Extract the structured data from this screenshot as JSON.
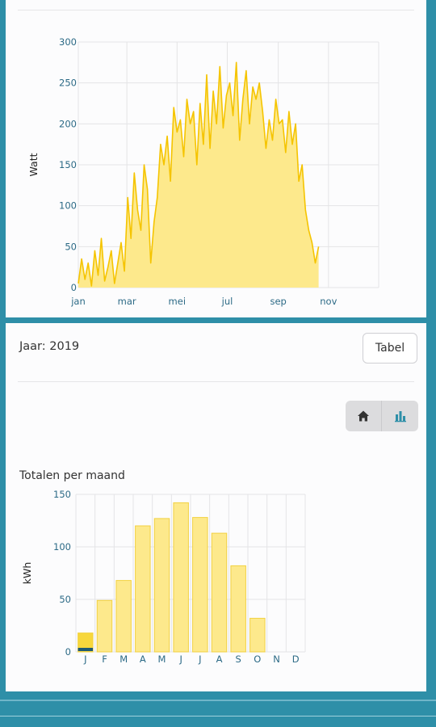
{
  "colors": {
    "accent": "#2e8fa8",
    "line": "#f5c400",
    "area": "#fde98c",
    "bar": "#fde98c",
    "bar_border": "#f2d141",
    "selected_marker": "#1f5a72"
  },
  "panel": {
    "year_label": "Jaar: 2019",
    "table_button": "Tabel",
    "icons": [
      "home-icon",
      "bar-chart-icon"
    ]
  },
  "chart_data": [
    {
      "type": "area",
      "title": "",
      "xlabel": "",
      "ylabel": "Watt",
      "xticks": [
        "jan",
        "mar",
        "mei",
        "jul",
        "sep",
        "nov"
      ],
      "ylim": [
        0,
        300
      ],
      "yticks": [
        0,
        50,
        100,
        150,
        200,
        250,
        300
      ],
      "grid": true,
      "x_unit": "day-of-year",
      "x": [
        0,
        4,
        8,
        12,
        16,
        20,
        24,
        28,
        32,
        36,
        40,
        44,
        48,
        52,
        56,
        60,
        64,
        68,
        72,
        76,
        80,
        84,
        88,
        92,
        96,
        100,
        104,
        108,
        112,
        116,
        120,
        124,
        128,
        132,
        136,
        140,
        144,
        148,
        152,
        156,
        160,
        164,
        168,
        172,
        176,
        180,
        184,
        188,
        192,
        196,
        200,
        204,
        208,
        212,
        216,
        220,
        224,
        228,
        232,
        236,
        240,
        244,
        248,
        252,
        256,
        260,
        264,
        268,
        272,
        276,
        280,
        284,
        288,
        292
      ],
      "values": [
        5,
        35,
        10,
        30,
        2,
        45,
        15,
        60,
        8,
        25,
        45,
        5,
        30,
        55,
        20,
        110,
        60,
        140,
        95,
        70,
        150,
        120,
        30,
        80,
        110,
        175,
        150,
        185,
        130,
        220,
        190,
        205,
        160,
        230,
        200,
        215,
        150,
        225,
        175,
        260,
        170,
        240,
        200,
        270,
        195,
        235,
        250,
        210,
        275,
        180,
        230,
        265,
        200,
        245,
        230,
        250,
        215,
        170,
        205,
        180,
        230,
        200,
        205,
        165,
        215,
        175,
        200,
        130,
        150,
        95,
        70,
        55,
        30,
        50
      ]
    },
    {
      "type": "bar",
      "title": "Totalen per maand",
      "xlabel": "",
      "ylabel": "kWh",
      "categories": [
        "J",
        "F",
        "M",
        "A",
        "M",
        "J",
        "J",
        "A",
        "S",
        "O",
        "N",
        "D"
      ],
      "values": [
        18,
        49,
        68,
        120,
        127,
        142,
        128,
        113,
        82,
        32,
        0,
        0
      ],
      "ylim": [
        0,
        150
      ],
      "yticks": [
        0,
        50,
        100,
        150
      ],
      "grid": true,
      "selected_index": 0
    }
  ]
}
